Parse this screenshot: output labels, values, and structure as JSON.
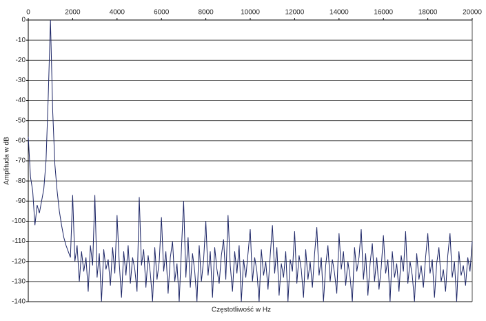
{
  "chart_data": {
    "type": "line",
    "x_label": "Częstotliwość w Hz",
    "y_label": "Amplituda w dB",
    "x": [
      0,
      100,
      200,
      300,
      400,
      500,
      600,
      700,
      800,
      900,
      1000,
      1100,
      1200,
      1300,
      1400,
      1500,
      1600,
      1700,
      1800,
      1900,
      2000,
      2100,
      2200,
      2300,
      2400,
      2500,
      2600,
      2700,
      2800,
      2900,
      3000,
      3100,
      3200,
      3300,
      3400,
      3500,
      3600,
      3700,
      3800,
      3900,
      4000,
      4100,
      4200,
      4300,
      4400,
      4500,
      4600,
      4700,
      4800,
      4900,
      5000,
      5100,
      5200,
      5300,
      5400,
      5500,
      5600,
      5700,
      5800,
      5900,
      6000,
      6100,
      6200,
      6300,
      6400,
      6500,
      6600,
      6700,
      6800,
      6900,
      7000,
      7100,
      7200,
      7300,
      7400,
      7500,
      7600,
      7700,
      7800,
      7900,
      8000,
      8100,
      8200,
      8300,
      8400,
      8500,
      8600,
      8700,
      8800,
      8900,
      9000,
      9100,
      9200,
      9300,
      9400,
      9500,
      9600,
      9700,
      9800,
      9900,
      10000,
      10100,
      10200,
      10300,
      10400,
      10500,
      10600,
      10700,
      10800,
      10900,
      11000,
      11100,
      11200,
      11300,
      11400,
      11500,
      11600,
      11700,
      11800,
      11900,
      12000,
      12100,
      12200,
      12300,
      12400,
      12500,
      12600,
      12700,
      12800,
      12900,
      13000,
      13100,
      13200,
      13300,
      13400,
      13500,
      13600,
      13700,
      13800,
      13900,
      14000,
      14100,
      14200,
      14300,
      14400,
      14500,
      14600,
      14700,
      14800,
      14900,
      15000,
      15100,
      15200,
      15300,
      15400,
      15500,
      15600,
      15700,
      15800,
      15900,
      16000,
      16100,
      16200,
      16300,
      16400,
      16500,
      16600,
      16700,
      16800,
      16900,
      17000,
      17100,
      17200,
      17300,
      17400,
      17500,
      17600,
      17700,
      17800,
      17900,
      18000,
      18100,
      18200,
      18300,
      18400,
      18500,
      18600,
      18700,
      18800,
      18900,
      19000,
      19100,
      19200,
      19300,
      19400,
      19500,
      19600,
      19700,
      19800,
      19900,
      20000
    ],
    "series": [
      {
        "color": "#1c2566",
        "values": [
          -58,
          -78,
          -85,
          -102,
          -92,
          -96,
          -90,
          -84,
          -70,
          -38,
          0,
          -45,
          -72,
          -85,
          -95,
          -102,
          -108,
          -112,
          -115,
          -118,
          -87,
          -120,
          -112,
          -130,
          -115,
          -125,
          -118,
          -135,
          -112,
          -122,
          -87,
          -128,
          -116,
          -140,
          -114,
          -124,
          -119,
          -132,
          -113,
          -126,
          -97,
          -121,
          -138,
          -115,
          -127,
          -112,
          -131,
          -118,
          -124,
          -135,
          -88,
          -122,
          -114,
          -133,
          -117,
          -126,
          -140,
          -113,
          -129,
          -120,
          -98,
          -125,
          -115,
          -136,
          -118,
          -110,
          -130,
          -121,
          -140,
          -114,
          -90,
          -128,
          -108,
          -133,
          -116,
          -125,
          -140,
          -112,
          -130,
          -119,
          -100,
          -127,
          -115,
          -138,
          -113,
          -124,
          -131,
          -117,
          -109,
          -129,
          -97,
          -122,
          -135,
          -115,
          -126,
          -112,
          -140,
          -119,
          -128,
          -116,
          -104,
          -130,
          -118,
          -125,
          -140,
          -114,
          -127,
          -120,
          -134,
          -117,
          -102,
          -126,
          -113,
          -137,
          -121,
          -128,
          -115,
          -140,
          -119,
          -125,
          -105,
          -131,
          -117,
          -124,
          -138,
          -114,
          -129,
          -120,
          -133,
          -116,
          -103,
          -127,
          -118,
          -140,
          -122,
          -112,
          -130,
          -119,
          -126,
          -136,
          -106,
          -124,
          -115,
          -132,
          -120,
          -128,
          -140,
          -113,
          -125,
          -118,
          -104,
          -129,
          -116,
          -137,
          -121,
          -111,
          -130,
          -118,
          -134,
          -123,
          -107,
          -126,
          -119,
          -140,
          -115,
          -128,
          -121,
          -135,
          -117,
          -125,
          -105,
          -131,
          -120,
          -127,
          -140,
          -116,
          -129,
          -122,
          -133,
          -118,
          -106,
          -126,
          -119,
          -138,
          -121,
          -113,
          -130,
          -124,
          -135,
          -117,
          -106,
          -128,
          -120,
          -140,
          -115,
          -127,
          -122,
          -132,
          -118,
          -125,
          -110
        ]
      }
    ],
    "xlim": [
      0,
      20000
    ],
    "xticks": [
      0,
      2000,
      4000,
      6000,
      8000,
      10000,
      12000,
      14000,
      16000,
      18000,
      20000
    ],
    "ylim": [
      -140,
      0
    ],
    "yticks": [
      0,
      -10,
      -20,
      -30,
      -40,
      -50,
      -60,
      -70,
      -80,
      -90,
      -100,
      -110,
      -120,
      -130,
      -140
    ],
    "grid": true
  }
}
